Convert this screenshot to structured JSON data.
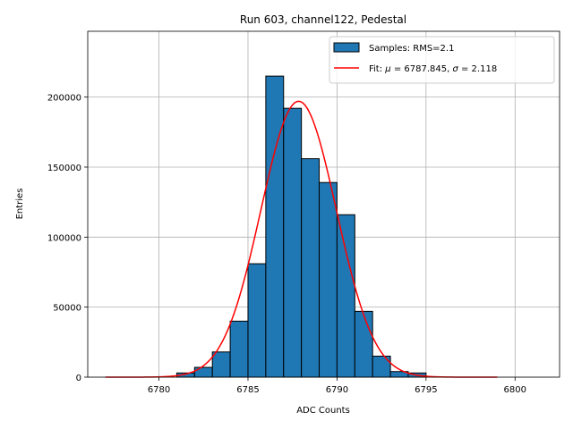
{
  "chart_data": {
    "type": "bar",
    "title": "Run 603, channel122, Pedestal",
    "xlabel": "ADC Counts",
    "ylabel": "Entries",
    "xlim": [
      6776.0,
      6802.5
    ],
    "ylim": [
      0,
      247000
    ],
    "xticks": [
      6780,
      6785,
      6790,
      6795,
      6800
    ],
    "yticks": [
      0,
      50000,
      100000,
      150000,
      200000
    ],
    "grid": true,
    "legend_position": "top-right",
    "histogram": {
      "name": "Samples: RMS=2.1",
      "color": "#1f77b4",
      "edgecolor": "#000000",
      "bin_width": 1,
      "bin_edges": [
        6781,
        6782,
        6783,
        6784,
        6785,
        6786,
        6787,
        6788,
        6789,
        6790,
        6791,
        6792,
        6793,
        6794,
        6795
      ],
      "values": [
        3000,
        7000,
        18000,
        40000,
        81000,
        215000,
        192000,
        156000,
        139000,
        116000,
        47000,
        15000,
        4000,
        3000
      ]
    },
    "fit": {
      "name": "Fit: μ = 6787.845, σ = 2.118",
      "legend_prefix": "Fit: ",
      "mu_symbol": "μ",
      "mu_text": " = 6787.845, ",
      "sigma_symbol": "σ",
      "sigma_text": " = 2.118",
      "color": "#ff0000",
      "mu": 6787.845,
      "sigma": 2.118,
      "amplitude": 197000,
      "x_range": [
        6777,
        6799
      ]
    }
  }
}
